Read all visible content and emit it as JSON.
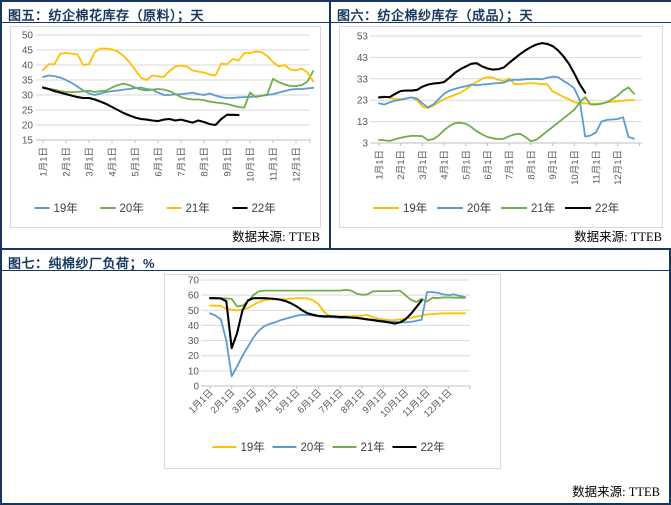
{
  "panels": [
    {
      "title": "图五：纺企棉花库存（原料）；天",
      "source": "数据来源: TTEB"
    },
    {
      "title": "图六：纺企棉纱库存（成品）；天",
      "source": "数据来源: TTEB"
    },
    {
      "title": "图七：纯棉纱厂负荷；%",
      "source": "数据来源: TTEB"
    }
  ],
  "colors": {
    "blue": "#5B9BD5",
    "green": "#70AD47",
    "yellow": "#FFC000",
    "black": "#000000",
    "border": "#16365C",
    "grid": "#D9D9D9",
    "axis": "#BFBFBF",
    "tick_label": "#595959"
  },
  "chart_data": [
    {
      "type": "line",
      "title": "图五：纺企棉花库存（原料）；天",
      "source": "数据来源: TTEB",
      "x_labels": [
        "1月1日",
        "2月1日",
        "3月1日",
        "4月1日",
        "5月1日",
        "6月1日",
        "7月1日",
        "8月1日",
        "9月1日",
        "10月1日",
        "11月1日",
        "12月1日"
      ],
      "y_min": 15,
      "y_max": 50,
      "y_ticks": [
        50,
        45,
        40,
        35,
        30,
        25,
        20,
        15
      ],
      "points_per_month": 4,
      "legend_position": "bottom",
      "series": [
        {
          "name": "19年",
          "color": "#5B9BD5",
          "values": [
            36,
            36.5,
            36.3,
            35.8,
            35,
            34,
            32.8,
            31.5,
            30.5,
            30,
            30.5,
            31,
            31.3,
            31.5,
            31.8,
            32,
            32.3,
            32.5,
            32,
            31.8,
            30.8,
            30,
            30,
            30.2,
            30.3,
            30.5,
            30.8,
            30.3,
            30,
            30.5,
            29.8,
            29.3,
            29,
            29,
            29.2,
            29.3,
            29.4,
            29.5,
            29.7,
            30,
            30.3,
            30.8,
            31.3,
            31.8,
            32,
            32,
            32.2,
            32.4
          ]
        },
        {
          "name": "20年",
          "color": "#70AD47",
          "values": [
            32.3,
            32,
            31.8,
            31.3,
            31,
            31,
            31,
            31.2,
            31.4,
            31,
            31.3,
            31.5,
            32.5,
            33.3,
            33.8,
            33.3,
            32.5,
            31.8,
            31.5,
            31.8,
            32,
            31.8,
            31.3,
            30.3,
            29.3,
            28.8,
            28.5,
            28.5,
            28.3,
            27.8,
            27.5,
            27.3,
            27,
            26.5,
            26,
            25.8,
            30.8,
            29.3,
            29.8,
            30.2,
            35.4,
            34.3,
            33.5,
            33,
            33,
            33.3,
            34.5,
            38
          ]
        },
        {
          "name": "21年",
          "color": "#FFC000",
          "values": [
            38.3,
            40.3,
            40.3,
            43.8,
            44,
            43.8,
            43.5,
            40,
            40.3,
            44.3,
            45.5,
            45.5,
            45.2,
            44.5,
            43,
            41,
            38.5,
            35.8,
            35,
            36.5,
            36.2,
            36,
            38,
            39.5,
            39.8,
            39.5,
            38.2,
            37.8,
            37.5,
            36.8,
            36.5,
            40.5,
            40.2,
            42,
            41.5,
            44,
            44,
            44.5,
            44.3,
            43,
            41,
            39.5,
            40,
            38.5,
            38.2,
            38.8,
            37.5,
            34.5
          ]
        },
        {
          "name": "22年",
          "color": "#000000",
          "values": [
            32.5,
            32,
            31.3,
            30.8,
            30.3,
            29.8,
            29.3,
            29,
            29,
            28.5,
            27.8,
            27,
            26,
            25,
            24,
            23.2,
            22.5,
            22,
            21.8,
            21.5,
            21.3,
            21.8,
            22,
            21.5,
            21.8,
            21.3,
            20.8,
            21.5,
            21,
            20.3,
            20,
            22,
            23.4,
            23.4,
            23.3
          ]
        }
      ]
    },
    {
      "type": "line",
      "title": "图六：纺企棉纱库存（成品）；天",
      "source": "数据来源: TTEB",
      "x_labels": [
        "1月1日",
        "2月1日",
        "3月1日",
        "4月1日",
        "5月1日",
        "6月1日",
        "7月1日",
        "8月1日",
        "9月1日",
        "10月1日",
        "11月1日",
        "12月1日"
      ],
      "y_min": 3,
      "y_max": 53,
      "y_ticks": [
        53,
        43,
        33,
        23,
        13,
        3
      ],
      "points_per_month": 4,
      "legend_position": "bottom",
      "series": [
        {
          "name": "19年",
          "color": "#FFC000",
          "values": [
            24.5,
            24.8,
            24,
            23.5,
            23.5,
            23.8,
            24.3,
            23,
            20,
            19.2,
            20.5,
            22,
            23.5,
            24.5,
            25.5,
            26.5,
            28,
            30,
            31.5,
            33,
            33.8,
            33.5,
            32.5,
            32,
            33.2,
            30.5,
            30.5,
            30.8,
            31,
            30.8,
            30.5,
            30.5,
            27,
            26,
            24.5,
            23.5,
            22,
            21.8,
            21.5,
            21.3,
            21.3,
            21.5,
            22,
            22.3,
            22.5,
            22.8,
            23,
            23
          ]
        },
        {
          "name": "20年",
          "color": "#5B9BD5",
          "values": [
            21.5,
            21,
            22,
            22.8,
            23.2,
            23.8,
            24.3,
            23.8,
            21.5,
            19.7,
            21,
            23.5,
            26,
            27.5,
            28.3,
            29,
            29.5,
            30.3,
            30,
            30.3,
            30.5,
            30.8,
            31,
            31.2,
            32.3,
            32.5,
            32.5,
            32.8,
            32.8,
            33,
            32.7,
            33.5,
            34,
            33.8,
            32,
            30.5,
            28.5,
            23,
            6,
            6.5,
            8,
            13,
            13.8,
            14,
            14.2,
            15,
            5.8,
            5
          ]
        },
        {
          "name": "21年",
          "color": "#70AD47",
          "values": [
            4.5,
            4.2,
            4,
            4.8,
            5.5,
            6,
            6.3,
            6.3,
            6.2,
            4.3,
            4.8,
            6.5,
            9,
            11,
            12.3,
            12.5,
            12,
            10.5,
            8.5,
            7,
            5.8,
            5.2,
            4.8,
            5,
            6.2,
            7,
            7.3,
            5.8,
            3.8,
            4.5,
            6.5,
            8.5,
            10.5,
            12.5,
            14.5,
            16.5,
            18.5,
            22,
            24.4,
            21,
            21,
            21.3,
            22,
            23.5,
            25.2,
            27.5,
            29,
            26
          ]
        },
        {
          "name": "22年",
          "color": "#000000",
          "values": [
            24.3,
            24.5,
            24.5,
            26,
            27.3,
            27.5,
            27.5,
            27.8,
            29.3,
            30.3,
            30.8,
            31,
            31.5,
            33.5,
            35.8,
            37.5,
            38.8,
            40,
            40.3,
            38.8,
            37.8,
            37.3,
            37.5,
            38.3,
            40.5,
            42.5,
            44.5,
            46.3,
            47.8,
            49,
            49.7,
            49.3,
            48.3,
            46.3,
            43.5,
            40,
            35.5,
            30.5,
            26.5
          ]
        }
      ]
    },
    {
      "type": "line",
      "title": "图七：纯棉纱厂负荷；%",
      "source": "数据来源: TTEB",
      "x_labels": [
        "1月1日",
        "2月1日",
        "3月1日",
        "4月1日",
        "5月1日",
        "6月1日",
        "7月1日",
        "8月1日",
        "9月1日",
        "10月1日",
        "11月1日",
        "12月1日"
      ],
      "y_min": 0,
      "y_max": 70,
      "y_ticks": [
        70,
        60,
        50,
        40,
        30,
        20,
        10,
        0
      ],
      "points_per_month": 4,
      "legend_position": "bottom",
      "series": [
        {
          "name": "19年",
          "color": "#FFC000",
          "values": [
            53,
            53,
            52.8,
            51,
            50.3,
            50,
            50.5,
            51.5,
            53.5,
            55.5,
            56.5,
            57.2,
            57.3,
            57,
            57.4,
            57.7,
            58,
            58,
            57.8,
            56.5,
            54,
            49,
            46.3,
            46,
            46,
            46,
            46,
            46.2,
            46.5,
            47,
            45.5,
            44.5,
            44,
            43.5,
            43.5,
            44,
            44.5,
            45,
            45.8,
            46.5,
            47.3,
            47.5,
            47.8,
            48,
            48,
            48,
            48,
            48
          ]
        },
        {
          "name": "20年",
          "color": "#5B9BD5",
          "values": [
            48,
            46.5,
            44,
            30,
            6.5,
            13,
            20,
            26,
            32,
            36.5,
            39.5,
            41,
            42,
            43.5,
            44.5,
            45.5,
            46.5,
            47,
            47,
            46.5,
            46,
            45.5,
            45.5,
            45.3,
            45,
            45,
            45.2,
            45.3,
            44.5,
            44,
            43.8,
            43.3,
            43,
            42.5,
            42.3,
            42,
            42,
            42.3,
            43,
            43.8,
            62,
            62,
            61.5,
            60.5,
            60,
            60.5,
            59.5,
            58.8
          ]
        },
        {
          "name": "21年",
          "color": "#70AD47",
          "values": [
            58,
            58,
            58,
            57.8,
            57.5,
            52.5,
            53,
            56,
            60,
            62.5,
            63,
            63,
            63,
            63,
            63,
            63,
            63,
            63,
            63,
            63,
            63,
            63,
            63,
            63,
            63,
            63.5,
            63,
            61,
            60.2,
            60.5,
            62.5,
            62.7,
            62.7,
            62.7,
            62.8,
            63,
            60,
            57,
            55.5,
            57.5,
            55.8,
            58.3,
            58,
            58.5,
            58.5,
            58.4,
            58.3,
            58.2
          ]
        },
        {
          "name": "22年",
          "color": "#000000",
          "values": [
            58,
            58,
            57.8,
            56,
            25,
            35,
            50,
            56.5,
            58,
            58,
            58,
            57.8,
            57.5,
            57,
            56,
            54.5,
            52.5,
            50,
            48,
            47,
            46.3,
            46,
            46,
            45.8,
            45.5,
            45.5,
            45.2,
            45,
            44.5,
            44,
            43.5,
            43,
            42.5,
            42,
            41.2,
            42,
            44,
            47.5,
            52,
            56.5
          ]
        }
      ]
    }
  ]
}
